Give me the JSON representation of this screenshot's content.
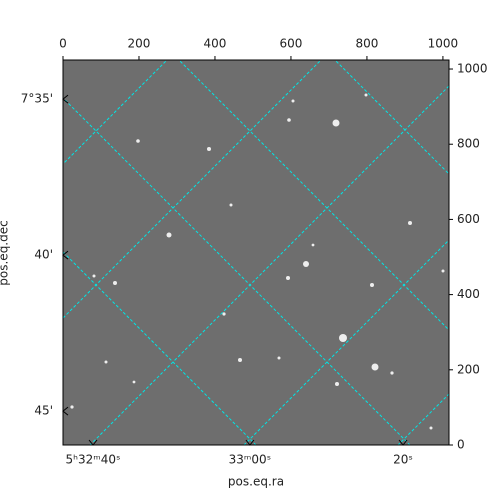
{
  "chart_data": {
    "type": "image",
    "xlabel": "pos.eq.ra",
    "ylabel": "pos.eq.dec",
    "xlim": [
      0,
      1016
    ],
    "ylim": [
      0,
      1024
    ],
    "xticks": [
      0,
      200,
      400,
      600,
      800,
      1000
    ],
    "yticks": [
      0,
      200,
      400,
      600,
      800,
      1000
    ],
    "world_xticks": [
      {
        "value": 79,
        "label": "5ʰ32ᵐ40ˢ"
      },
      {
        "value": 492,
        "label": "33ᵐ00ˢ"
      },
      {
        "value": 895,
        "label": "20ˢ"
      }
    ],
    "world_yticks": [
      {
        "value": 920,
        "label": "7°35'"
      },
      {
        "value": 505,
        "label": "40'"
      },
      {
        "value": 90,
        "label": "45'"
      }
    ],
    "grid_color": "#00e5e5"
  }
}
